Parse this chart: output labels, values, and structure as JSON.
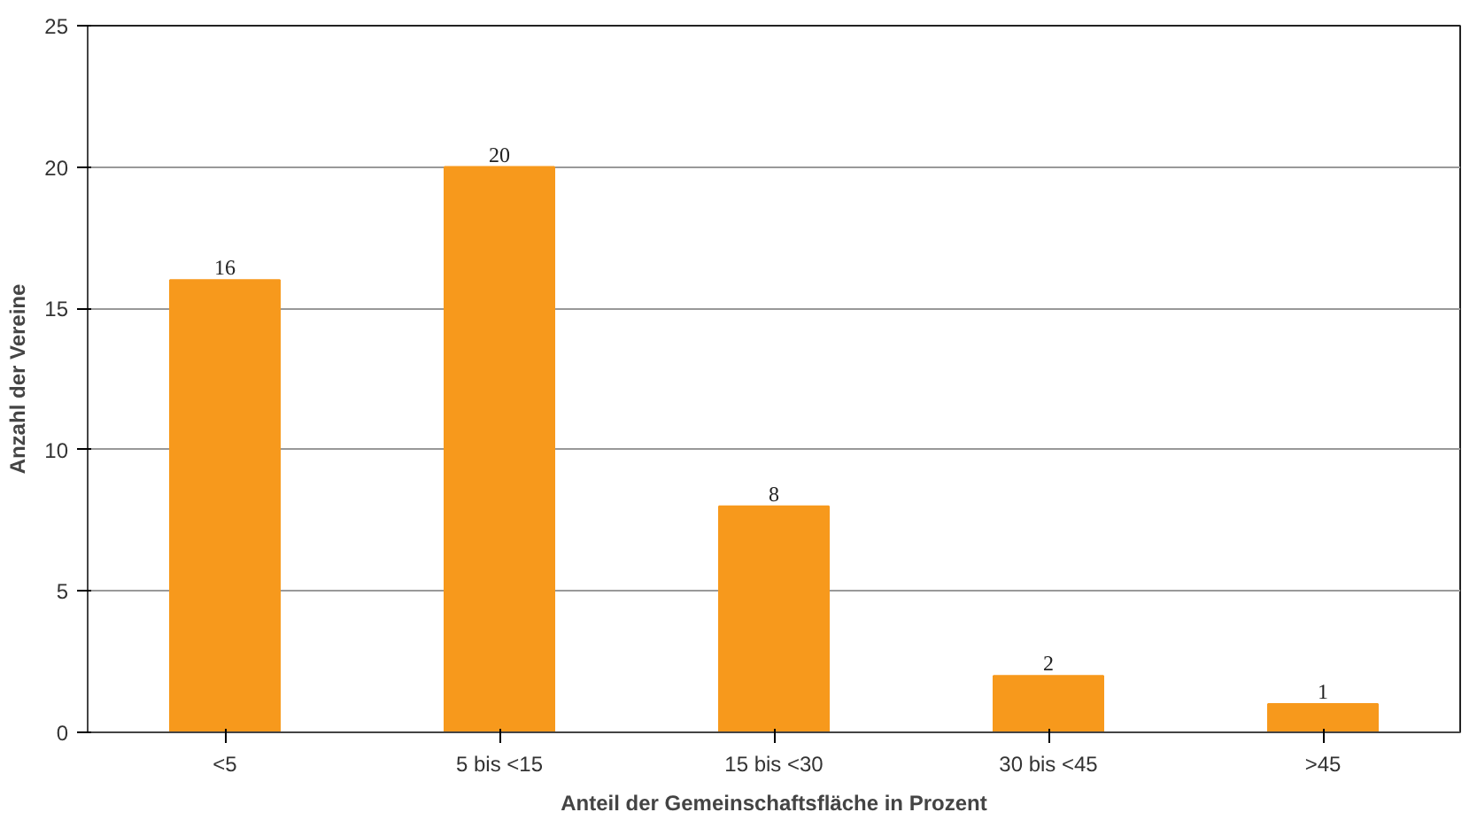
{
  "chart_data": {
    "type": "bar",
    "xlabel": "Anteil der Gemeinschaftsfläche in Prozent",
    "ylabel": "Anzahl der Vereine",
    "categories": [
      "<5",
      "5 bis <15",
      "15 bis <30",
      "30 bis <45",
      ">45"
    ],
    "values": [
      16,
      20,
      8,
      2,
      1
    ],
    "color": "#f7991c",
    "ylim": [
      0,
      25
    ],
    "yticks": [
      0,
      5,
      10,
      15,
      20,
      25
    ],
    "grid": "y",
    "data_labels": true
  }
}
